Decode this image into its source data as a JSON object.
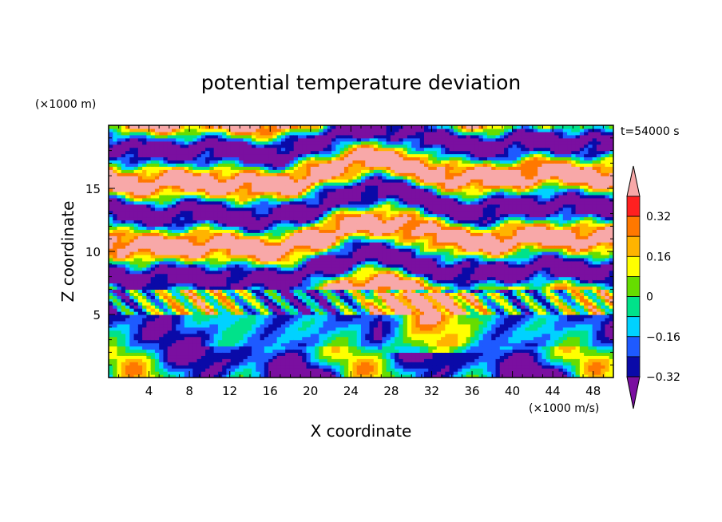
{
  "chart_data": {
    "type": "heatmap",
    "title": "potential temperature deviation",
    "xlabel": "X coordinate",
    "ylabel": "Z coordinate",
    "x_unit": "(×1000 m/s)",
    "y_unit": "(×1000 m)",
    "time_label": "t=54000 s",
    "xlim": [
      0,
      50
    ],
    "ylim": [
      0,
      20
    ],
    "x_ticks": [
      "4",
      "8",
      "12",
      "16",
      "20",
      "24",
      "28",
      "32",
      "36",
      "40",
      "44",
      "48"
    ],
    "y_ticks": [
      "5",
      "10",
      "15"
    ],
    "colorbar": {
      "levels": [
        -0.4,
        -0.32,
        -0.24,
        -0.16,
        -0.08,
        0,
        0.08,
        0.16,
        0.24,
        0.32,
        0.4
      ],
      "labeled": [
        "0.32",
        "0.16",
        "0",
        "−0.16",
        "−0.32"
      ],
      "colors": [
        "#7a0fa0",
        "#0a0aa8",
        "#1e5aff",
        "#00d2ff",
        "#00e28a",
        "#66dd00",
        "#ffff00",
        "#ffb400",
        "#ff7800",
        "#ff2020",
        "#f8a8a8"
      ],
      "extend": "both"
    }
  }
}
